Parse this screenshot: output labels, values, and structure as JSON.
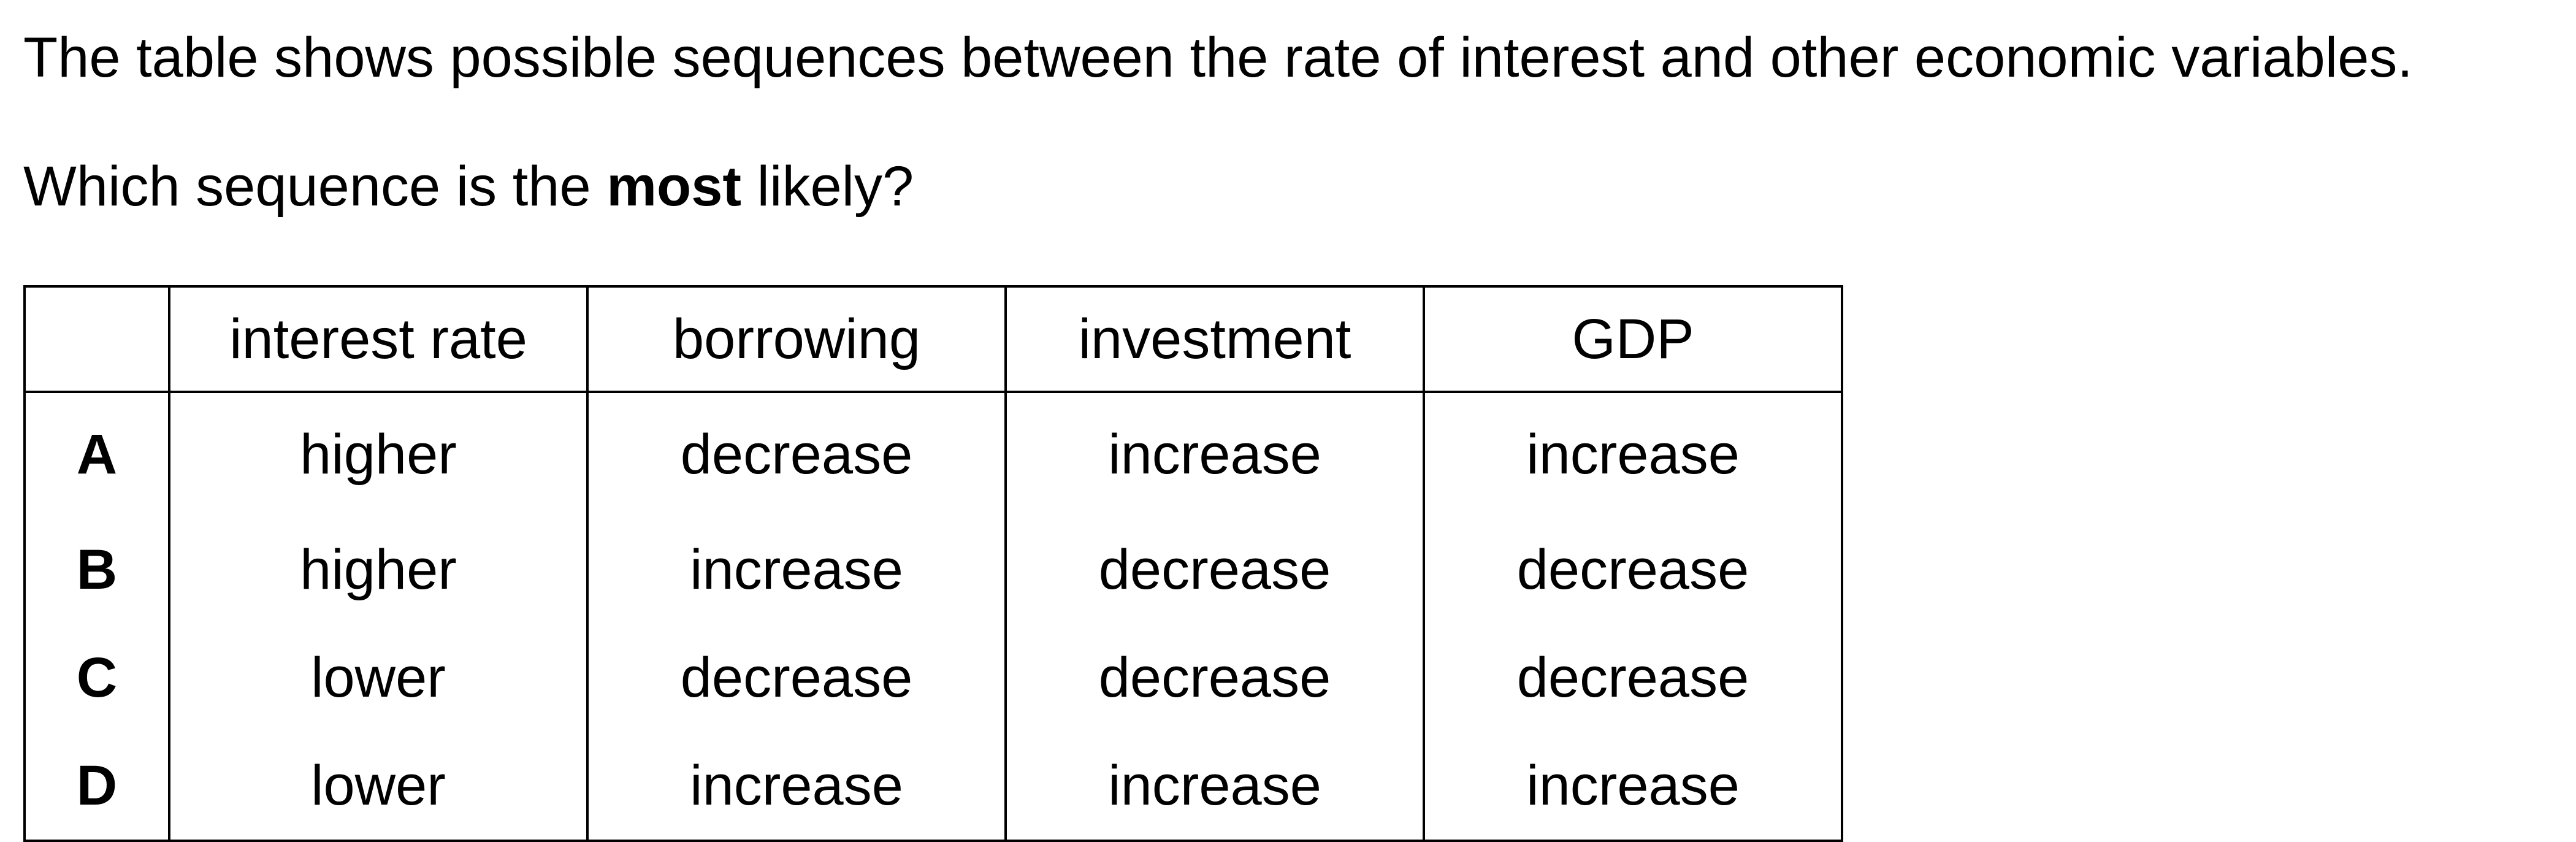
{
  "intro_text": "The table shows possible sequences between the rate of interest and other economic variables.",
  "question": {
    "before": "Which sequence is the ",
    "bold": "most",
    "after": " likely?"
  },
  "table": {
    "headers": [
      "",
      "interest rate",
      "borrowing",
      "investment",
      "GDP"
    ],
    "rows": [
      {
        "option": "A",
        "interest_rate": "higher",
        "borrowing": "decrease",
        "investment": "increase",
        "gdp": "increase"
      },
      {
        "option": "B",
        "interest_rate": "higher",
        "borrowing": "increase",
        "investment": "decrease",
        "gdp": "decrease"
      },
      {
        "option": "C",
        "interest_rate": "lower",
        "borrowing": "decrease",
        "investment": "decrease",
        "gdp": "decrease"
      },
      {
        "option": "D",
        "interest_rate": "lower",
        "borrowing": "increase",
        "investment": "increase",
        "gdp": "increase"
      }
    ]
  }
}
